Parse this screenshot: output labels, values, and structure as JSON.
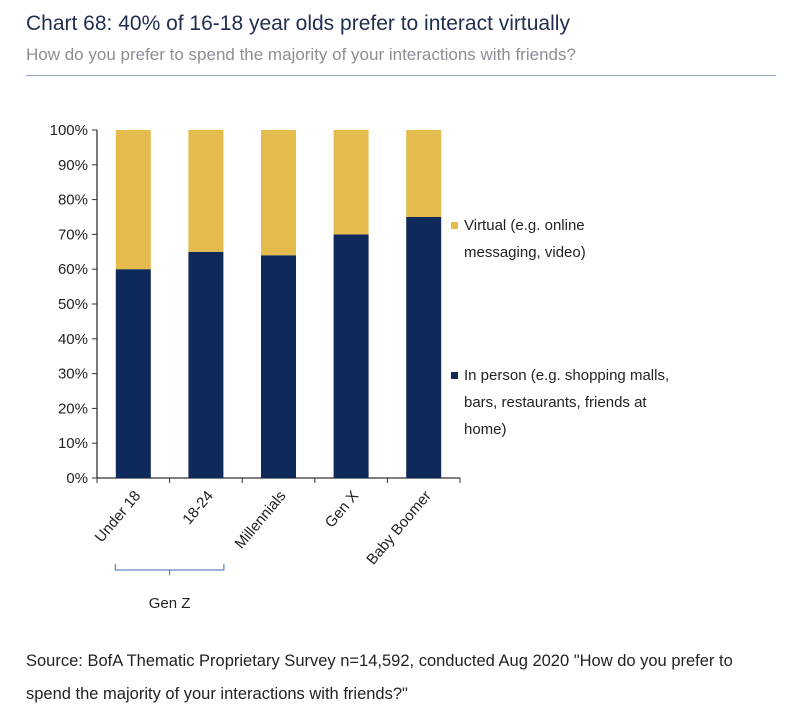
{
  "title": "Chart 68: 40% of 16-18 year olds prefer to interact virtually",
  "subtitle": "How do you prefer to spend the majority of your interactions with friends?",
  "source": "Source: BofA Thematic Proprietary Survey n=14,592, conducted Aug 2020 \"How do you prefer to spend the majority of your interactions with friends?\"",
  "chart_data": {
    "type": "bar",
    "stacked": true,
    "categories": [
      "Under 18",
      "18-24",
      "Millennials",
      "Gen X",
      "Baby Boomer"
    ],
    "group_label": {
      "text": "Gen Z",
      "categories": [
        "Under 18",
        "18-24"
      ]
    },
    "series": [
      {
        "name": "In person (e.g. shopping malls, bars, restaurants, friends at home)",
        "color": "#0d2a5a",
        "values": [
          60,
          65,
          64,
          70,
          75
        ]
      },
      {
        "name": "Virtual (e.g. online messaging, video)",
        "color": "#e6bb4e",
        "values": [
          40,
          35,
          36,
          30,
          25
        ]
      }
    ],
    "ylim": [
      0,
      100
    ],
    "yticks": [
      "0%",
      "10%",
      "20%",
      "30%",
      "40%",
      "50%",
      "60%",
      "70%",
      "80%",
      "90%",
      "100%"
    ],
    "legend": "right",
    "grid": false
  }
}
